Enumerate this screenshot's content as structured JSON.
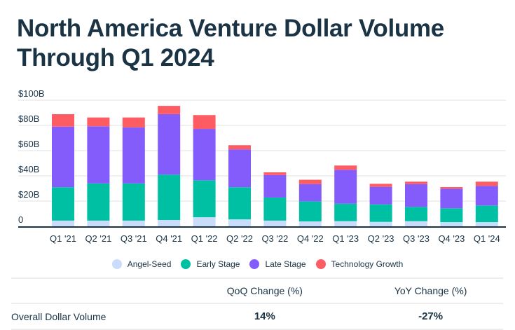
{
  "title": "North America Venture Dollar Volume Through Q1 2024",
  "title_lines": [
    "North America Venture Dollar Volume",
    "Through Q1 2024"
  ],
  "colors": {
    "angel_seed": "#c9dcfb",
    "early_stage": "#00c0a3",
    "late_stage": "#835cfb",
    "technology_growth": "#fe5c63",
    "text": "#1a3345",
    "grid": "#eeeeee"
  },
  "legend": [
    {
      "label": "Angel-Seed",
      "color": "#c9dcfb"
    },
    {
      "label": "Early Stage",
      "color": "#00c0a3"
    },
    {
      "label": "Late Stage",
      "color": "#835cfb"
    },
    {
      "label": "Technology Growth",
      "color": "#fe5c63"
    }
  ],
  "chart_data": {
    "type": "bar",
    "stacked": true,
    "title": "North America Venture Dollar Volume Through Q1 2024",
    "xlabel": "",
    "ylabel": "",
    "ylim": [
      0,
      100
    ],
    "yticks": [
      0,
      20,
      40,
      60,
      80,
      100
    ],
    "ytick_labels": [
      "0",
      "$20B",
      "$40B",
      "$60B",
      "$80B",
      "$100B"
    ],
    "grid": true,
    "legend_position": "bottom",
    "categories": [
      "Q1 '21",
      "Q2 '21",
      "Q3 '21",
      "Q4 '21",
      "Q1 '22",
      "Q2 '22",
      "Q3 '22",
      "Q4 '22",
      "Q1 '23",
      "Q2 '23",
      "Q3 '23",
      "Q4 '23",
      "Q1 '24"
    ],
    "series": [
      {
        "name": "Angel-Seed",
        "color": "#c9dcfb",
        "values": [
          4.5,
          4.5,
          4.5,
          5.0,
          7.2,
          5.5,
          4.5,
          3.9,
          4.1,
          3.5,
          4.1,
          3.3,
          3.3
        ]
      },
      {
        "name": "Early Stage",
        "color": "#00c0a3",
        "values": [
          26.5,
          29.5,
          29.5,
          36.0,
          29.3,
          25.5,
          18.3,
          15.9,
          13.8,
          13.9,
          11.3,
          11.0,
          13.2
        ]
      },
      {
        "name": "Late Stage",
        "color": "#835cfb",
        "values": [
          48.0,
          45.3,
          44.5,
          48.0,
          40.7,
          30.0,
          17.9,
          13.7,
          26.9,
          13.9,
          18.1,
          15.5,
          15.5
        ]
      },
      {
        "name": "Technology Growth",
        "color": "#fe5c63",
        "values": [
          9.9,
          7.0,
          7.8,
          6.5,
          11.0,
          3.3,
          2.1,
          3.4,
          3.4,
          2.4,
          1.9,
          1.3,
          3.4
        ]
      }
    ]
  },
  "table": {
    "headers": [
      "",
      "QoQ Change (%)",
      "YoY Change (%)"
    ],
    "rows": [
      {
        "label": "Overall Dollar Volume",
        "qoq": "14%",
        "yoy": "-27%"
      }
    ]
  }
}
